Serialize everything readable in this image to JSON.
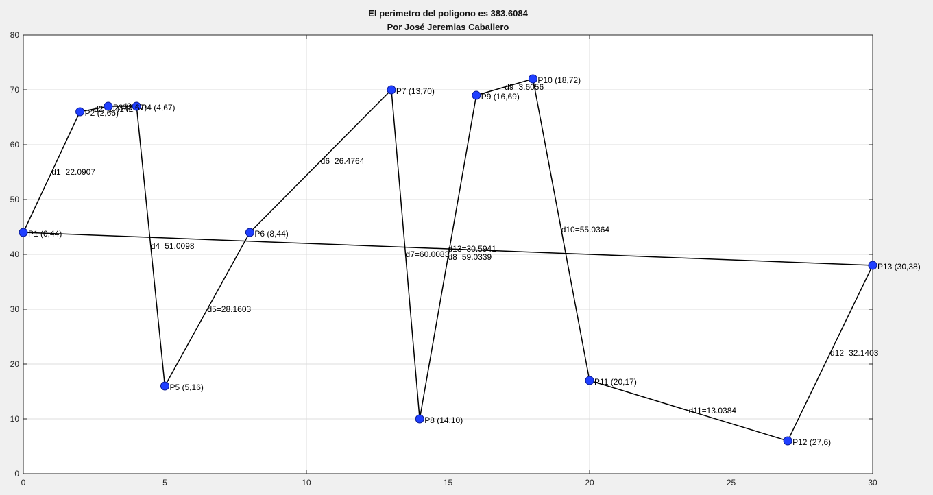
{
  "chart_data": {
    "type": "line",
    "title": "El perimetro del poligono es 383.6084",
    "subtitle": "Por José Jeremias Caballero",
    "xlim": [
      0,
      30
    ],
    "ylim": [
      0,
      80
    ],
    "xticks": [
      0,
      5,
      10,
      15,
      20,
      25,
      30
    ],
    "yticks": [
      0,
      10,
      20,
      30,
      40,
      50,
      60,
      70,
      80
    ],
    "grid": true,
    "line_color": "#000000",
    "marker_color": "#1f3fff",
    "points": [
      {
        "label": "P1 (0,44)",
        "x": 0,
        "y": 44
      },
      {
        "label": "P2 (2,66)",
        "x": 2,
        "y": 66
      },
      {
        "label": "P3 (3,67)",
        "x": 3,
        "y": 67
      },
      {
        "label": "P4 (4,67)",
        "x": 4,
        "y": 67
      },
      {
        "label": "P5 (5,16)",
        "x": 5,
        "y": 16
      },
      {
        "label": "P6 (8,44)",
        "x": 8,
        "y": 44
      },
      {
        "label": "P7 (13,70)",
        "x": 13,
        "y": 70
      },
      {
        "label": "P8 (14,10)",
        "x": 14,
        "y": 10
      },
      {
        "label": "P9 (16,69)",
        "x": 16,
        "y": 69
      },
      {
        "label": "P10 (18,72)",
        "x": 18,
        "y": 72
      },
      {
        "label": "P11 (20,17)",
        "x": 20,
        "y": 17
      },
      {
        "label": "P12 (27,6)",
        "x": 27,
        "y": 6
      },
      {
        "label": "P13 (30,38)",
        "x": 30,
        "y": 38
      }
    ],
    "distances": [
      "d1=22.0907",
      "d2=1.4142",
      "d3=1",
      "d4=51.0098",
      "d5=28.1603",
      "d6=26.4764",
      "d7=60.0083",
      "d8=59.0339",
      "d9=3.6056",
      "d10=55.0364",
      "d11=13.0384",
      "d12=32.1403",
      "d13=30.5941"
    ]
  }
}
